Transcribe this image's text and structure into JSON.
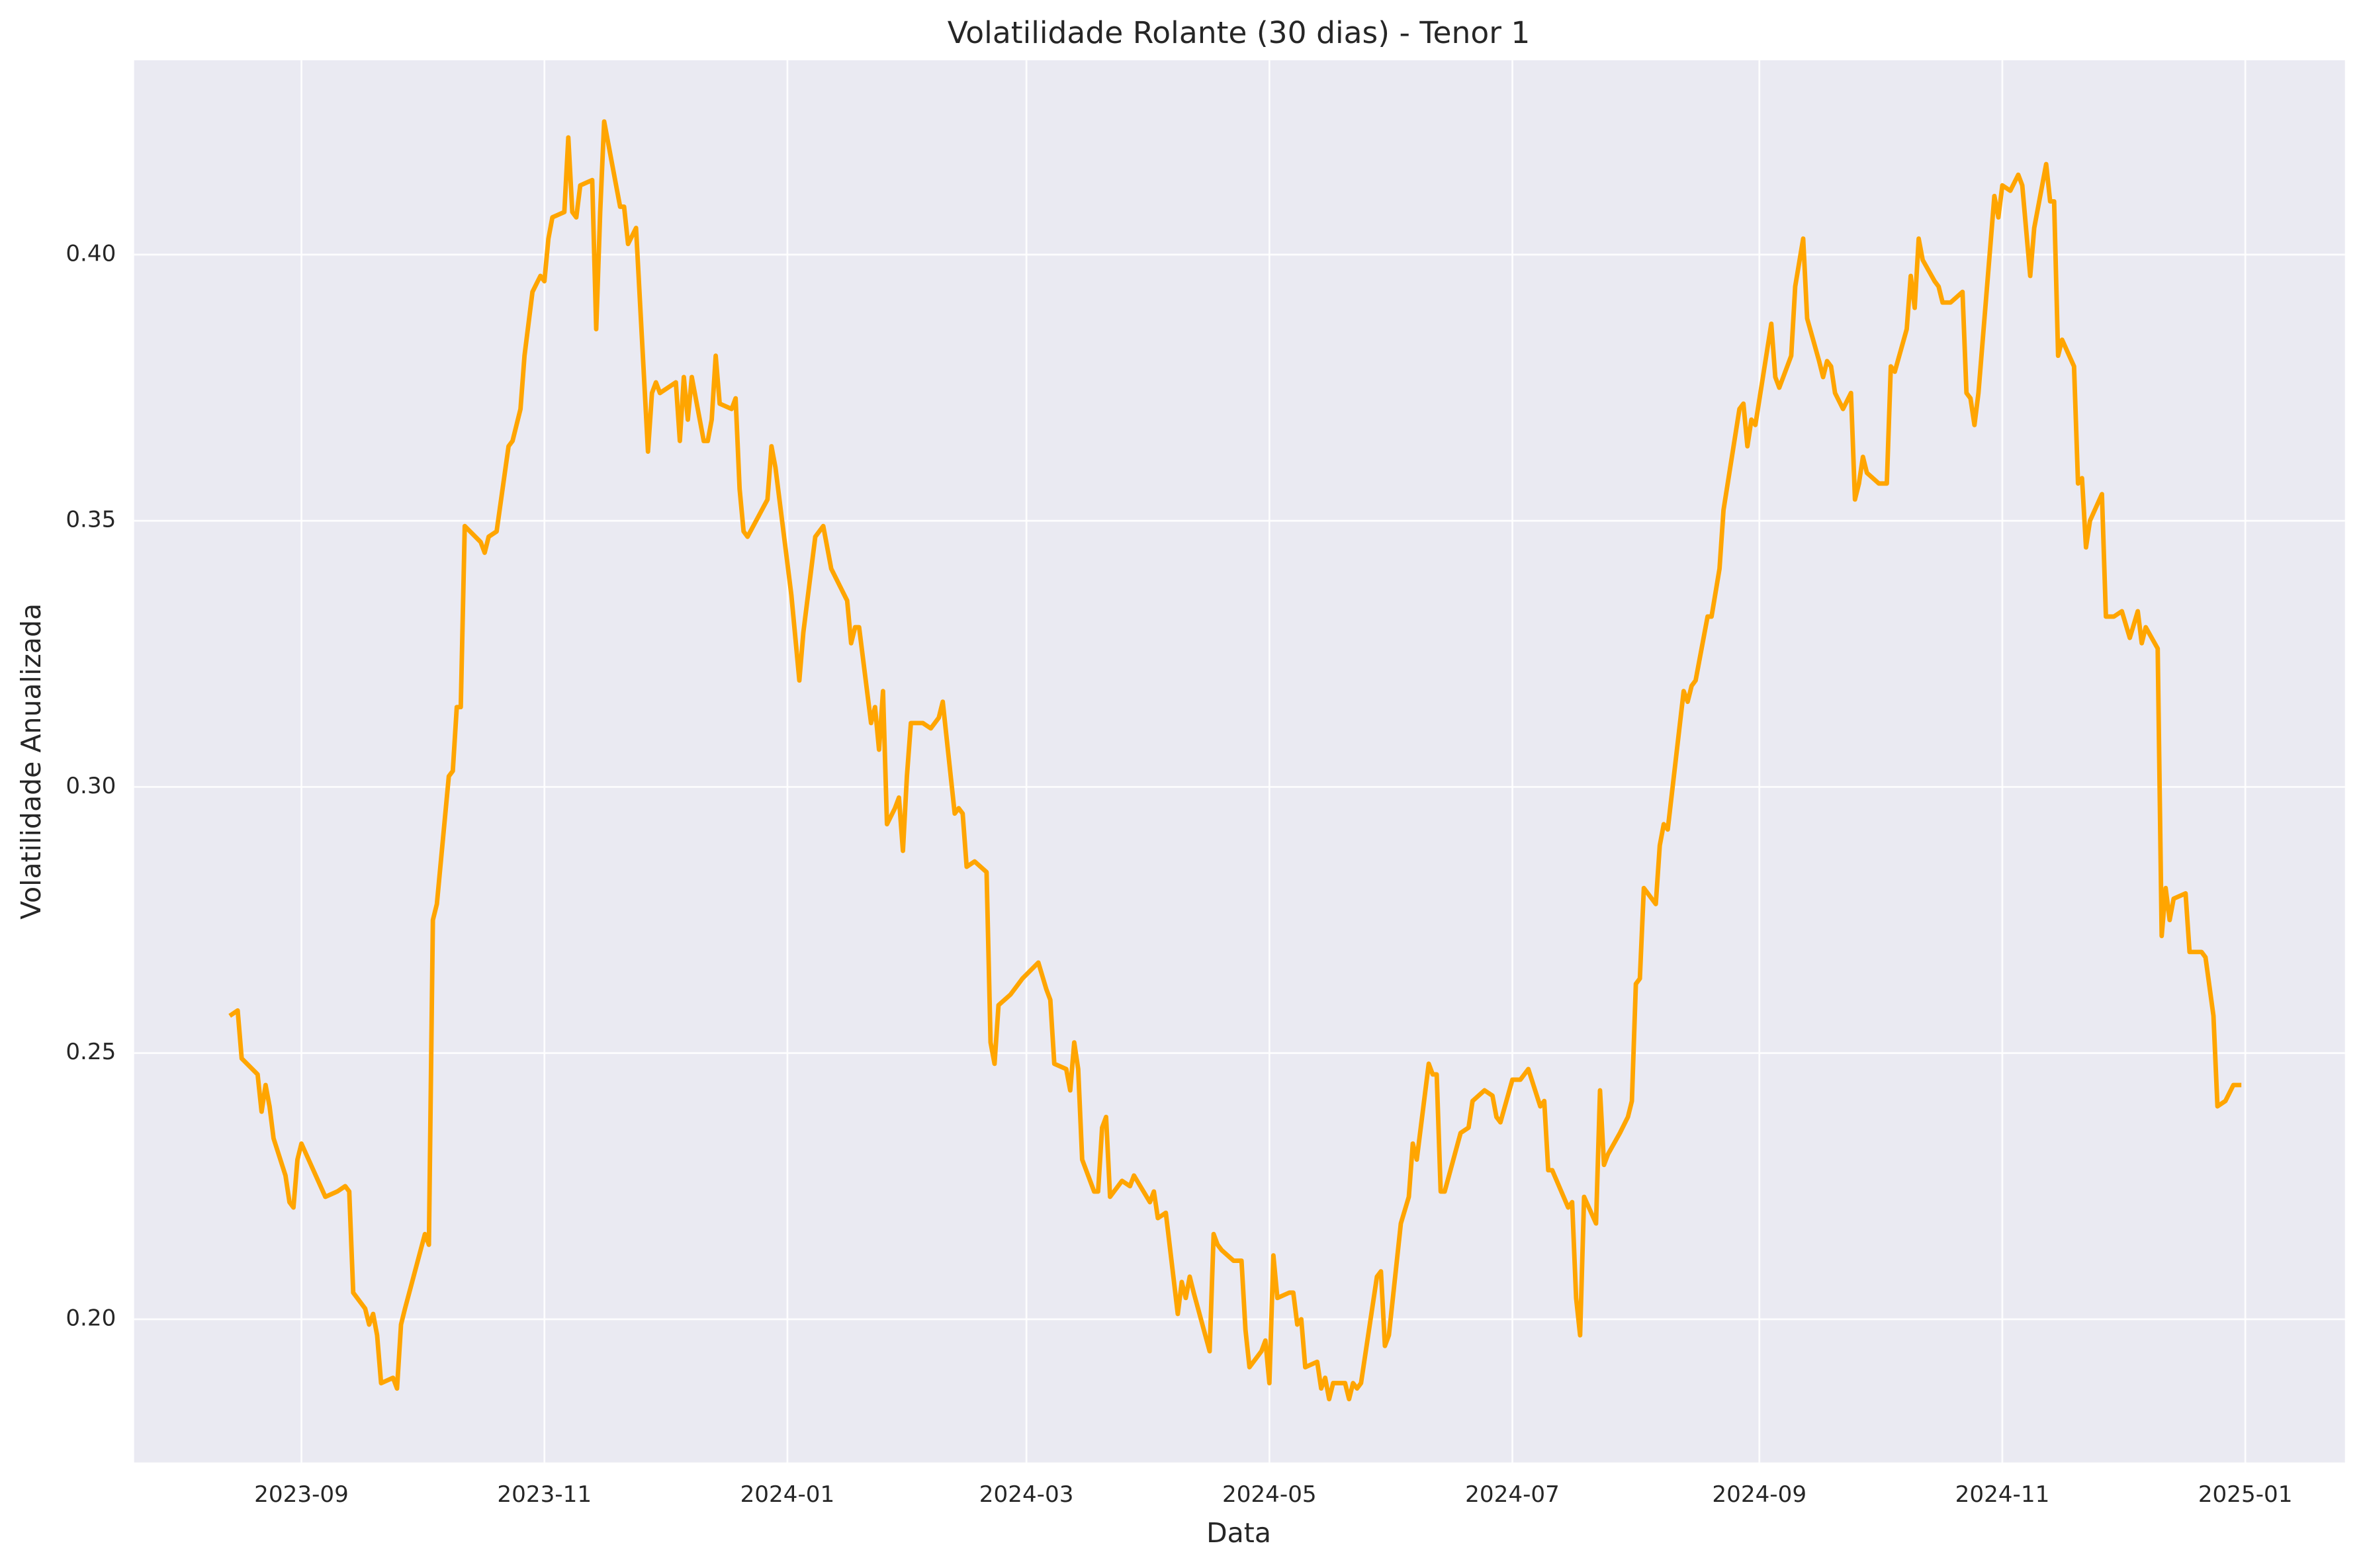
{
  "chart_data": {
    "type": "line",
    "title": "Volatilidade Rolante (30 dias) - Tenor 1",
    "xlabel": "Data",
    "ylabel": "Volatilidade Anualizada",
    "grid": true,
    "xlim": [
      "2023-07-21",
      "2025-01-26"
    ],
    "ylim": [
      0.1731,
      0.4365
    ],
    "xticks": [
      {
        "value": "2023-09-01",
        "label": "2023-09"
      },
      {
        "value": "2023-11-01",
        "label": "2023-11"
      },
      {
        "value": "2024-01-01",
        "label": "2024-01"
      },
      {
        "value": "2024-03-01",
        "label": "2024-03"
      },
      {
        "value": "2024-05-01",
        "label": "2024-05"
      },
      {
        "value": "2024-07-01",
        "label": "2024-07"
      },
      {
        "value": "2024-09-01",
        "label": "2024-09"
      },
      {
        "value": "2024-11-01",
        "label": "2024-11"
      },
      {
        "value": "2025-01-01",
        "label": "2025-01"
      }
    ],
    "yticks": [
      {
        "value": 0.2,
        "label": "0.20"
      },
      {
        "value": 0.25,
        "label": "0.25"
      },
      {
        "value": 0.3,
        "label": "0.30"
      },
      {
        "value": 0.35,
        "label": "0.35"
      },
      {
        "value": 0.4,
        "label": "0.40"
      }
    ],
    "x": [
      "2023-08-14",
      "2023-08-16",
      "2023-08-17",
      "2023-08-21",
      "2023-08-22",
      "2023-08-23",
      "2023-08-24",
      "2023-08-25",
      "2023-08-28",
      "2023-08-29",
      "2023-08-30",
      "2023-08-31",
      "2023-09-01",
      "2023-09-04",
      "2023-09-07",
      "2023-09-10",
      "2023-09-12",
      "2023-09-13",
      "2023-09-14",
      "2023-09-17",
      "2023-09-18",
      "2023-09-19",
      "2023-09-20",
      "2023-09-21",
      "2023-09-24",
      "2023-09-25",
      "2023-09-26",
      "2023-09-27",
      "2023-10-02",
      "2023-10-03",
      "2023-10-04",
      "2023-10-05",
      "2023-10-08",
      "2023-10-09",
      "2023-10-10",
      "2023-10-11",
      "2023-10-12",
      "2023-10-16",
      "2023-10-17",
      "2023-10-18",
      "2023-10-20",
      "2023-10-23",
      "2023-10-24",
      "2023-10-26",
      "2023-10-27",
      "2023-10-29",
      "2023-10-31",
      "2023-11-01",
      "2023-11-02",
      "2023-11-03",
      "2023-11-06",
      "2023-11-07",
      "2023-11-08",
      "2023-11-09",
      "2023-11-10",
      "2023-11-13",
      "2023-11-14",
      "2023-11-15",
      "2023-11-16",
      "2023-11-20",
      "2023-11-21",
      "2023-11-22",
      "2023-11-24",
      "2023-11-27",
      "2023-11-28",
      "2023-11-29",
      "2023-11-30",
      "2023-12-04",
      "2023-12-05",
      "2023-12-06",
      "2023-12-07",
      "2023-12-08",
      "2023-12-11",
      "2023-12-12",
      "2023-12-13",
      "2023-12-14",
      "2023-12-15",
      "2023-12-18",
      "2023-12-19",
      "2023-12-20",
      "2023-12-21",
      "2023-12-22",
      "2023-12-27",
      "2023-12-28",
      "2023-12-29",
      "2024-01-02",
      "2024-01-04",
      "2024-01-05",
      "2024-01-08",
      "2024-01-10",
      "2024-01-12",
      "2024-01-16",
      "2024-01-17",
      "2024-01-18",
      "2024-01-19",
      "2024-01-22",
      "2024-01-23",
      "2024-01-24",
      "2024-01-25",
      "2024-01-26",
      "2024-01-28",
      "2024-01-29",
      "2024-01-30",
      "2024-01-31",
      "2024-02-01",
      "2024-02-04",
      "2024-02-06",
      "2024-02-08",
      "2024-02-09",
      "2024-02-12",
      "2024-02-13",
      "2024-02-14",
      "2024-02-15",
      "2024-02-17",
      "2024-02-20",
      "2024-02-21",
      "2024-02-22",
      "2024-02-23",
      "2024-02-26",
      "2024-02-28",
      "2024-02-29",
      "2024-03-04",
      "2024-03-06",
      "2024-03-07",
      "2024-03-08",
      "2024-03-11",
      "2024-03-12",
      "2024-03-13",
      "2024-03-14",
      "2024-03-15",
      "2024-03-18",
      "2024-03-19",
      "2024-03-20",
      "2024-03-21",
      "2024-03-22",
      "2024-03-25",
      "2024-03-27",
      "2024-03-28",
      "2024-04-01",
      "2024-04-02",
      "2024-04-03",
      "2024-04-05",
      "2024-04-08",
      "2024-04-09",
      "2024-04-10",
      "2024-04-11",
      "2024-04-12",
      "2024-04-16",
      "2024-04-17",
      "2024-04-18",
      "2024-04-19",
      "2024-04-22",
      "2024-04-24",
      "2024-04-25",
      "2024-04-26",
      "2024-04-29",
      "2024-04-30",
      "2024-05-01",
      "2024-05-02",
      "2024-05-03",
      "2024-05-06",
      "2024-05-07",
      "2024-05-08",
      "2024-05-09",
      "2024-05-10",
      "2024-05-13",
      "2024-05-14",
      "2024-05-15",
      "2024-05-16",
      "2024-05-17",
      "2024-05-20",
      "2024-05-21",
      "2024-05-22",
      "2024-05-23",
      "2024-05-24",
      "2024-05-28",
      "2024-05-29",
      "2024-05-30",
      "2024-05-31",
      "2024-06-03",
      "2024-06-05",
      "2024-06-06",
      "2024-06-07",
      "2024-06-10",
      "2024-06-11",
      "2024-06-12",
      "2024-06-13",
      "2024-06-14",
      "2024-06-18",
      "2024-06-20",
      "2024-06-21",
      "2024-06-24",
      "2024-06-26",
      "2024-06-27",
      "2024-06-28",
      "2024-07-01",
      "2024-07-03",
      "2024-07-04",
      "2024-07-05",
      "2024-07-08",
      "2024-07-09",
      "2024-07-10",
      "2024-07-11",
      "2024-07-15",
      "2024-07-16",
      "2024-07-17",
      "2024-07-18",
      "2024-07-19",
      "2024-07-22",
      "2024-07-23",
      "2024-07-24",
      "2024-07-25",
      "2024-07-28",
      "2024-07-30",
      "2024-07-31",
      "2024-08-01",
      "2024-08-02",
      "2024-08-03",
      "2024-08-06",
      "2024-08-07",
      "2024-08-08",
      "2024-08-09",
      "2024-08-13",
      "2024-08-14",
      "2024-08-15",
      "2024-08-16",
      "2024-08-19",
      "2024-08-20",
      "2024-08-22",
      "2024-08-23",
      "2024-08-27",
      "2024-08-28",
      "2024-08-29",
      "2024-08-30",
      "2024-08-31",
      "2024-09-04",
      "2024-09-05",
      "2024-09-06",
      "2024-09-08",
      "2024-09-09",
      "2024-09-10",
      "2024-09-12",
      "2024-09-13",
      "2024-09-16",
      "2024-09-17",
      "2024-09-18",
      "2024-09-19",
      "2024-09-20",
      "2024-09-22",
      "2024-09-24",
      "2024-09-25",
      "2024-09-26",
      "2024-09-27",
      "2024-09-28",
      "2024-10-01",
      "2024-10-03",
      "2024-10-04",
      "2024-10-05",
      "2024-10-08",
      "2024-10-09",
      "2024-10-10",
      "2024-10-11",
      "2024-10-12",
      "2024-10-15",
      "2024-10-16",
      "2024-10-17",
      "2024-10-19",
      "2024-10-22",
      "2024-10-23",
      "2024-10-24",
      "2024-10-25",
      "2024-10-26",
      "2024-10-30",
      "2024-10-31",
      "2024-11-01",
      "2024-11-03",
      "2024-11-05",
      "2024-11-06",
      "2024-11-08",
      "2024-11-09",
      "2024-11-12",
      "2024-11-13",
      "2024-11-14",
      "2024-11-15",
      "2024-11-16",
      "2024-11-19",
      "2024-11-20",
      "2024-11-21",
      "2024-11-22",
      "2024-11-23",
      "2024-11-26",
      "2024-11-27",
      "2024-11-29",
      "2024-12-01",
      "2024-12-03",
      "2024-12-05",
      "2024-12-06",
      "2024-12-07",
      "2024-12-10",
      "2024-12-11",
      "2024-12-12",
      "2024-12-13",
      "2024-12-14",
      "2024-12-17",
      "2024-12-18",
      "2024-12-20",
      "2024-12-21",
      "2024-12-22",
      "2024-12-24",
      "2024-12-25",
      "2024-12-27",
      "2024-12-29",
      "2024-12-31"
    ],
    "series": [
      {
        "name": "Tenor 1",
        "color": "#ffa500",
        "values": [
          0.257,
          0.258,
          0.249,
          0.246,
          0.239,
          0.244,
          0.24,
          0.234,
          0.227,
          0.222,
          0.221,
          0.23,
          0.233,
          0.228,
          0.223,
          0.224,
          0.225,
          0.224,
          0.205,
          0.202,
          0.199,
          0.201,
          0.197,
          0.188,
          0.189,
          0.187,
          0.199,
          0.202,
          0.216,
          0.214,
          0.275,
          0.278,
          0.302,
          0.303,
          0.315,
          0.315,
          0.349,
          0.346,
          0.344,
          0.347,
          0.348,
          0.364,
          0.365,
          0.371,
          0.381,
          0.393,
          0.396,
          0.395,
          0.403,
          0.407,
          0.408,
          0.422,
          0.408,
          0.407,
          0.413,
          0.414,
          0.386,
          0.408,
          0.425,
          0.409,
          0.409,
          0.402,
          0.405,
          0.363,
          0.374,
          0.376,
          0.374,
          0.376,
          0.365,
          0.377,
          0.369,
          0.377,
          0.365,
          0.365,
          0.369,
          0.381,
          0.372,
          0.371,
          0.373,
          0.356,
          0.348,
          0.347,
          0.354,
          0.364,
          0.36,
          0.336,
          0.32,
          0.329,
          0.347,
          0.349,
          0.341,
          0.335,
          0.327,
          0.33,
          0.33,
          0.312,
          0.315,
          0.307,
          0.318,
          0.293,
          0.296,
          0.298,
          0.288,
          0.302,
          0.312,
          0.312,
          0.311,
          0.313,
          0.316,
          0.295,
          0.296,
          0.295,
          0.285,
          0.286,
          0.284,
          0.252,
          0.248,
          0.259,
          0.261,
          0.263,
          0.264,
          0.267,
          0.262,
          0.26,
          0.248,
          0.247,
          0.243,
          0.252,
          0.247,
          0.23,
          0.224,
          0.224,
          0.236,
          0.238,
          0.223,
          0.226,
          0.225,
          0.227,
          0.222,
          0.224,
          0.219,
          0.22,
          0.201,
          0.207,
          0.204,
          0.208,
          0.205,
          0.194,
          0.216,
          0.214,
          0.213,
          0.211,
          0.211,
          0.198,
          0.191,
          0.194,
          0.196,
          0.188,
          0.212,
          0.204,
          0.205,
          0.205,
          0.199,
          0.2,
          0.191,
          0.192,
          0.187,
          0.189,
          0.185,
          0.188,
          0.188,
          0.185,
          0.188,
          0.187,
          0.188,
          0.208,
          0.209,
          0.195,
          0.197,
          0.218,
          0.223,
          0.233,
          0.23,
          0.248,
          0.246,
          0.246,
          0.224,
          0.224,
          0.235,
          0.236,
          0.241,
          0.243,
          0.242,
          0.238,
          0.237,
          0.245,
          0.245,
          0.246,
          0.247,
          0.24,
          0.241,
          0.228,
          0.228,
          0.221,
          0.222,
          0.204,
          0.197,
          0.223,
          0.218,
          0.243,
          0.229,
          0.231,
          0.235,
          0.238,
          0.241,
          0.263,
          0.264,
          0.281,
          0.278,
          0.289,
          0.293,
          0.292,
          0.318,
          0.316,
          0.319,
          0.32,
          0.332,
          0.332,
          0.341,
          0.352,
          0.371,
          0.372,
          0.364,
          0.369,
          0.368,
          0.387,
          0.377,
          0.375,
          0.379,
          0.381,
          0.394,
          0.403,
          0.388,
          0.38,
          0.377,
          0.38,
          0.379,
          0.374,
          0.371,
          0.374,
          0.354,
          0.357,
          0.362,
          0.359,
          0.357,
          0.357,
          0.379,
          0.378,
          0.386,
          0.396,
          0.39,
          0.403,
          0.399,
          0.395,
          0.394,
          0.391,
          0.391,
          0.393,
          0.374,
          0.373,
          0.368,
          0.374,
          0.411,
          0.407,
          0.413,
          0.412,
          0.415,
          0.413,
          0.396,
          0.405,
          0.417,
          0.41,
          0.41,
          0.381,
          0.384,
          0.379,
          0.357,
          0.358,
          0.345,
          0.35,
          0.355,
          0.332,
          0.332,
          0.333,
          0.328,
          0.333,
          0.327,
          0.33,
          0.326,
          0.272,
          0.281,
          0.275,
          0.279,
          0.28,
          0.269,
          0.269,
          0.269,
          0.268,
          0.257,
          0.24,
          0.241,
          0.244,
          0.244
        ]
      }
    ]
  }
}
